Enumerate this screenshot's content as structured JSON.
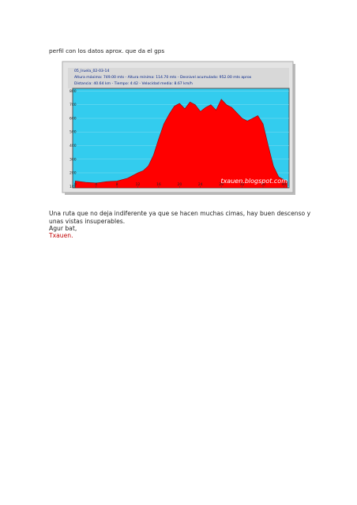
{
  "paragraphs": [
    "perfil con los datos aprox. que da el gps",
    "Una ruta que no deja indiferente ya que se hacen muchas cimas, hay buen descenso y unas vistas insuperables.",
    "Agur bat,",
    "Txauen."
  ],
  "chart_data": {
    "type": "area",
    "title": "05_Iruela_02-03-14",
    "stats": [
      "Altura máxima: 749.00 mts - Altura mínima: 114.70 mts - Desnivel acumulado: 952.00 mts aprox",
      "Distancia: 40.64 km - Tiempo: 4:42 - Velocidad media: 8.67 km/h"
    ],
    "watermark": "txauen.blogspot.com",
    "x": [
      0,
      2,
      4,
      6,
      8,
      10,
      11,
      12,
      13,
      14,
      15,
      16,
      17,
      18,
      19,
      20,
      21,
      22,
      23,
      24,
      25,
      26,
      27,
      28,
      29,
      30,
      31,
      32,
      33,
      34,
      35,
      36,
      37,
      38,
      39,
      40,
      40.64
    ],
    "values": [
      140,
      130,
      125,
      135,
      140,
      160,
      180,
      200,
      215,
      250,
      330,
      450,
      560,
      630,
      690,
      710,
      670,
      720,
      700,
      650,
      680,
      700,
      660,
      740,
      700,
      680,
      640,
      600,
      580,
      600,
      620,
      560,
      400,
      250,
      170,
      150,
      140
    ],
    "color": "#ff0000",
    "xlim": [
      -0.5,
      41
    ],
    "ylim": [
      90,
      820
    ],
    "xticks": [
      0,
      4,
      8,
      12,
      16,
      20,
      24,
      28,
      32,
      36,
      40
    ],
    "yticks": [
      100,
      200,
      300,
      400,
      500,
      600,
      700,
      800
    ],
    "grid": true
  }
}
